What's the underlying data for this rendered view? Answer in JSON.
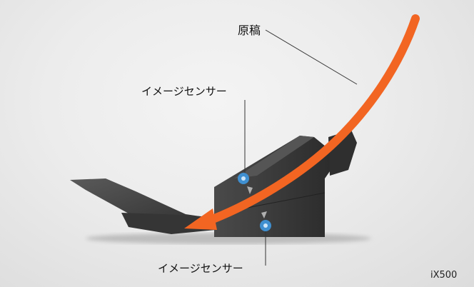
{
  "labels": {
    "document": "原稿",
    "image_sensor_top": "イメージセンサー",
    "image_sensor_bottom": "イメージセンサー",
    "model": "iX500"
  },
  "colors": {
    "paper_path_arrow": "#f26522",
    "sensor_marker": "#3f8fd0",
    "scanner_body": "#3a3a3a"
  },
  "icons": {
    "sensor_top": "circle-target-icon",
    "sensor_bottom": "circle-target-icon"
  }
}
